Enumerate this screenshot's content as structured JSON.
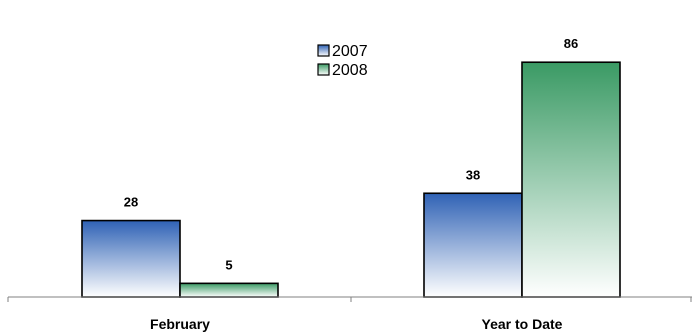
{
  "chart_data": {
    "type": "bar",
    "categories": [
      "February",
      "Year to Date"
    ],
    "series": [
      {
        "name": "2007",
        "values": [
          28,
          38
        ]
      },
      {
        "name": "2008",
        "values": [
          5,
          86
        ]
      }
    ],
    "ylim": [
      0,
      100
    ],
    "grid": false,
    "legend_position": "top-center",
    "show_value_labels": true,
    "colors": {
      "2007": {
        "top": "#2f62b5",
        "bottom": "#ffffff"
      },
      "2008": {
        "top": "#3a9a64",
        "bottom": "#ffffff"
      },
      "axis": "#808080",
      "bar_border": "#000000"
    }
  }
}
